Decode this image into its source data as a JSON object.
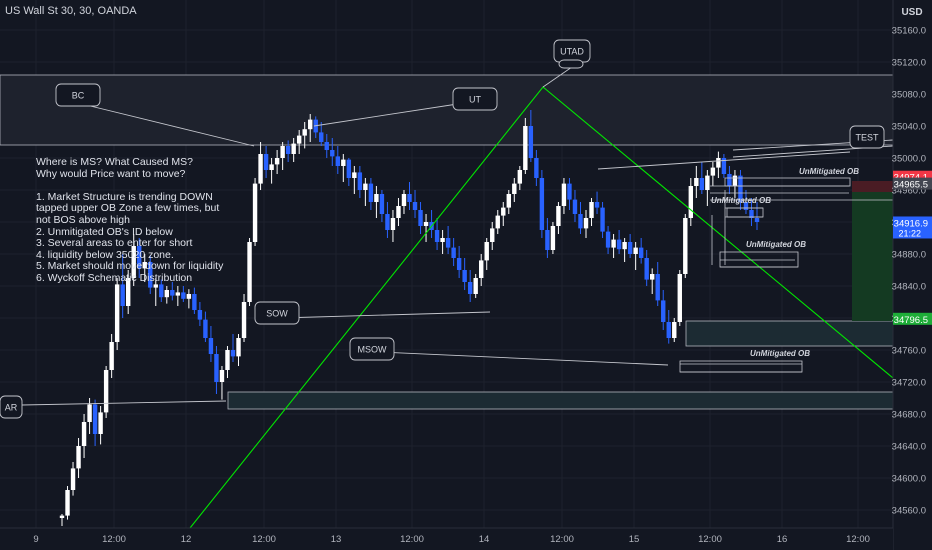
{
  "title": "US Wall St 30, 30, OANDA",
  "currency": "USD",
  "colors": {
    "background": "#131722",
    "up_candle": "#ffffff",
    "down_candle": "#2962ff",
    "grid": "#1e222d",
    "trendline": "#00e600",
    "zone_fill": "#1c2b33",
    "blue_label": "#2962ff",
    "green_label": "#1ead38",
    "red_label": "#f23645"
  },
  "chart_data": {
    "type": "candlestick",
    "ylim": [
      34550,
      35190
    ],
    "y_ticks": [
      35160,
      35120,
      35080,
      35040,
      35000,
      34960,
      34920,
      34880,
      34840,
      34800,
      34760,
      34720,
      34680,
      34640,
      34600,
      34560
    ],
    "x_ticks": [
      "9",
      "12:00",
      "12",
      "12:00",
      "13",
      "12:00",
      "14",
      "12:00",
      "15",
      "12:00",
      "16",
      "12:00"
    ],
    "price_labels": [
      {
        "text": "34974.1",
        "value": 34974.1,
        "color": "red"
      },
      {
        "text": "34965.5",
        "value": 34965.5,
        "color": "gray"
      },
      {
        "text": "34916.9",
        "value": 34916.9,
        "color": "blue",
        "sub": "21:22"
      },
      {
        "text": "34796.5",
        "value": 34796.5,
        "color": "green"
      }
    ],
    "candles": [
      [
        34550,
        34555,
        34540,
        34553
      ],
      [
        34553,
        34590,
        34548,
        34585
      ],
      [
        34585,
        34620,
        34578,
        34612
      ],
      [
        34612,
        34650,
        34600,
        34640
      ],
      [
        34640,
        34680,
        34625,
        34670
      ],
      [
        34670,
        34700,
        34655,
        34692
      ],
      [
        34692,
        34698,
        34640,
        34655
      ],
      [
        34655,
        34690,
        34642,
        34682
      ],
      [
        34682,
        34740,
        34675,
        34735
      ],
      [
        34735,
        34780,
        34725,
        34770
      ],
      [
        34770,
        34850,
        34760,
        34842
      ],
      [
        34842,
        34880,
        34800,
        34815
      ],
      [
        34815,
        34860,
        34805,
        34850
      ],
      [
        34850,
        34905,
        34840,
        34890
      ],
      [
        34890,
        34900,
        34850,
        34862
      ],
      [
        34862,
        34880,
        34845,
        34870
      ],
      [
        34870,
        34878,
        34830,
        34838
      ],
      [
        34838,
        34850,
        34815,
        34842
      ],
      [
        34842,
        34848,
        34820,
        34826
      ],
      [
        34826,
        34840,
        34818,
        34835
      ],
      [
        34835,
        34845,
        34822,
        34828
      ],
      [
        34828,
        34840,
        34815,
        34832
      ],
      [
        34832,
        34840,
        34820,
        34824
      ],
      [
        34824,
        34836,
        34812,
        34830
      ],
      [
        34830,
        34838,
        34805,
        34810
      ],
      [
        34810,
        34820,
        34790,
        34798
      ],
      [
        34798,
        34808,
        34770,
        34775
      ],
      [
        34775,
        34790,
        34745,
        34755
      ],
      [
        34755,
        34765,
        34705,
        34720
      ],
      [
        34720,
        34740,
        34698,
        34735
      ],
      [
        34735,
        34765,
        34725,
        34760
      ],
      [
        34760,
        34780,
        34745,
        34752
      ],
      [
        34752,
        34780,
        34740,
        34775
      ],
      [
        34775,
        34830,
        34770,
        34820
      ],
      [
        34820,
        34900,
        34815,
        34895
      ],
      [
        34895,
        34975,
        34890,
        34968
      ],
      [
        34968,
        35020,
        34960,
        35005
      ],
      [
        35005,
        35015,
        34975,
        34985
      ],
      [
        34985,
        35000,
        34968,
        34992
      ],
      [
        34992,
        35010,
        34980,
        35000
      ],
      [
        35000,
        35020,
        34985,
        35015
      ],
      [
        35015,
        35022,
        34995,
        35005
      ],
      [
        35005,
        35025,
        34995,
        35018
      ],
      [
        35018,
        35035,
        35005,
        35028
      ],
      [
        35028,
        35045,
        35012,
        35036
      ],
      [
        35036,
        35055,
        35020,
        35048
      ],
      [
        35048,
        35052,
        35025,
        35032
      ],
      [
        35032,
        35045,
        35015,
        35020
      ],
      [
        35020,
        35030,
        35000,
        35010
      ],
      [
        35010,
        35025,
        34990,
        35002
      ],
      [
        35002,
        35015,
        34980,
        34990
      ],
      [
        34990,
        35005,
        34970,
        34998
      ],
      [
        34998,
        35000,
        34965,
        34975
      ],
      [
        34975,
        34990,
        34955,
        34982
      ],
      [
        34982,
        34990,
        34950,
        34960
      ],
      [
        34960,
        34975,
        34940,
        34968
      ],
      [
        34968,
        34975,
        34935,
        34945
      ],
      [
        34945,
        34965,
        34925,
        34955
      ],
      [
        34955,
        34960,
        34920,
        34930
      ],
      [
        34930,
        34945,
        34900,
        34910
      ],
      [
        34910,
        34935,
        34895,
        34925
      ],
      [
        34925,
        34950,
        34915,
        34940
      ],
      [
        34940,
        34960,
        34930,
        34955
      ],
      [
        34955,
        34970,
        34935,
        34945
      ],
      [
        34945,
        34960,
        34925,
        34935
      ],
      [
        34935,
        34945,
        34905,
        34915
      ],
      [
        34915,
        34930,
        34895,
        34920
      ],
      [
        34920,
        34935,
        34900,
        34910
      ],
      [
        34910,
        34925,
        34885,
        34895
      ],
      [
        34895,
        34910,
        34880,
        34900
      ],
      [
        34900,
        34915,
        34880,
        34888
      ],
      [
        34888,
        34900,
        34865,
        34875
      ],
      [
        34875,
        34890,
        34850,
        34860
      ],
      [
        34860,
        34875,
        34835,
        34845
      ],
      [
        34845,
        34860,
        34820,
        34830
      ],
      [
        34830,
        34855,
        34825,
        34850
      ],
      [
        34850,
        34880,
        34840,
        34872
      ],
      [
        34872,
        34900,
        34860,
        34895
      ],
      [
        34895,
        34920,
        34885,
        34912
      ],
      [
        34912,
        34935,
        34905,
        34928
      ],
      [
        34928,
        34945,
        34915,
        34938
      ],
      [
        34938,
        34960,
        34930,
        34955
      ],
      [
        34955,
        34975,
        34945,
        34968
      ],
      [
        34968,
        34990,
        34960,
        34985
      ],
      [
        34985,
        35050,
        34980,
        35040
      ],
      [
        35040,
        35060,
        34995,
        35000
      ],
      [
        35000,
        35010,
        34965,
        34975
      ],
      [
        34975,
        34985,
        34900,
        34910
      ],
      [
        34910,
        34925,
        34875,
        34885
      ],
      [
        34885,
        34920,
        34880,
        34915
      ],
      [
        34915,
        34945,
        34905,
        34940
      ],
      [
        34940,
        34975,
        34930,
        34968
      ],
      [
        34968,
        34975,
        34935,
        34948
      ],
      [
        34948,
        34960,
        34920,
        34930
      ],
      [
        34930,
        34945,
        34905,
        34912
      ],
      [
        34912,
        34935,
        34900,
        34925
      ],
      [
        34925,
        34950,
        34915,
        34945
      ],
      [
        34945,
        34958,
        34930,
        34938
      ],
      [
        34938,
        34945,
        34900,
        34908
      ],
      [
        34908,
        34915,
        34880,
        34888
      ],
      [
        34888,
        34905,
        34875,
        34898
      ],
      [
        34898,
        34910,
        34880,
        34886
      ],
      [
        34886,
        34900,
        34870,
        34895
      ],
      [
        34895,
        34905,
        34875,
        34880
      ],
      [
        34880,
        34895,
        34860,
        34888
      ],
      [
        34888,
        34900,
        34868,
        34875
      ],
      [
        34875,
        34885,
        34840,
        34848
      ],
      [
        34848,
        34862,
        34830,
        34855
      ],
      [
        34855,
        34870,
        34815,
        34822
      ],
      [
        34822,
        34835,
        34785,
        34795
      ],
      [
        34795,
        34810,
        34768,
        34775
      ],
      [
        34775,
        34800,
        34770,
        34795
      ],
      [
        34795,
        34860,
        34790,
        34855
      ],
      [
        34855,
        34930,
        34850,
        34925
      ],
      [
        34925,
        34975,
        34915,
        34965
      ],
      [
        34965,
        34990,
        34950,
        34975
      ],
      [
        34975,
        34995,
        34955,
        34960
      ],
      [
        34960,
        34985,
        34940,
        34978
      ],
      [
        34978,
        34995,
        34965,
        34988
      ],
      [
        34988,
        35008,
        34975,
        35000
      ],
      [
        35000,
        35005,
        34975,
        34980
      ],
      [
        34980,
        34990,
        34955,
        34965
      ],
      [
        34965,
        34985,
        34950,
        34978
      ],
      [
        34978,
        34985,
        34935,
        34945
      ],
      [
        34945,
        34960,
        34930,
        34935
      ],
      [
        34935,
        34950,
        34915,
        34925
      ],
      [
        34925,
        34945,
        34910,
        34920
      ]
    ]
  },
  "labels": {
    "bc": "BC",
    "ut": "UT",
    "utad": "UTAD",
    "test": "TEST",
    "sow": "SOW",
    "msow": "MSOW",
    "ar": "AR",
    "ob1": "UnMitigated OB",
    "ob2": "UnMitigated OB",
    "ob3": "UnMitigated OB",
    "ob4": "UnMitigated OB"
  },
  "notes": [
    "Where is MS? What Caused MS?",
    "Why would Price want to move?",
    "",
    "1. Market Structure is trending DOWN",
    "tapped upper OB Zone a few times, but",
    "not BOS above high",
    "2. Unmitigated OB's ID below",
    "3. Several areas to enter for short",
    "4. liquidity below 35020 zone.",
    "5. Market should move down for liquidity",
    "6. Wyckoff Schematic Distribution"
  ]
}
